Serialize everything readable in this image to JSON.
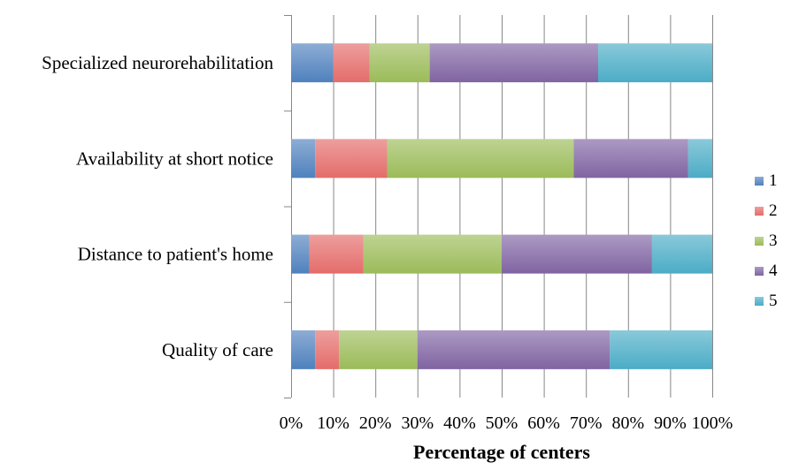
{
  "chart_data": {
    "type": "bar",
    "orientation": "horizontal",
    "stacked": "percent",
    "title": "",
    "xlabel": "Percentage of centers",
    "ylabel": "",
    "xlim": [
      0,
      100
    ],
    "x_ticks": [
      "0%",
      "10%",
      "20%",
      "30%",
      "40%",
      "50%",
      "60%",
      "70%",
      "80%",
      "90%",
      "100%"
    ],
    "grid": "vertical",
    "legend_position": "right",
    "categories": [
      "Specialized neurorehabilitation",
      "Availability at short notice",
      "Distance to patient's home",
      "Quality of care"
    ],
    "series": [
      {
        "name": "1",
        "color": "#4F81BD",
        "values": [
          10,
          5.7,
          4.3,
          5.7
        ]
      },
      {
        "name": "2",
        "color": "#E46C6A",
        "values": [
          8.6,
          17.1,
          12.9,
          5.7
        ]
      },
      {
        "name": "3",
        "color": "#9BBB59",
        "values": [
          14.3,
          44.3,
          32.8,
          18.6
        ]
      },
      {
        "name": "4",
        "color": "#8064A2",
        "values": [
          40,
          27.2,
          35.7,
          45.7
        ]
      },
      {
        "name": "5",
        "color": "#4BACC6",
        "values": [
          27.1,
          5.7,
          14.3,
          24.3
        ]
      }
    ]
  }
}
